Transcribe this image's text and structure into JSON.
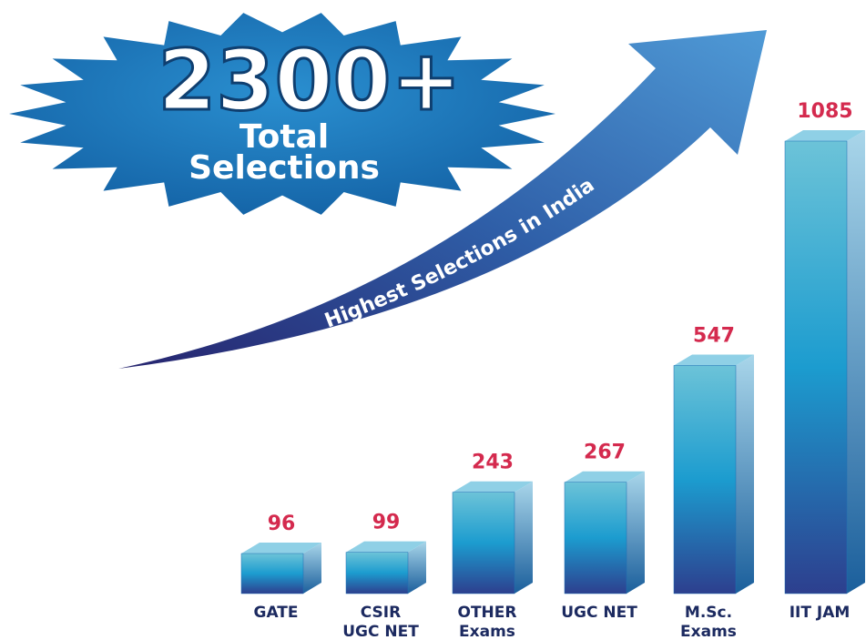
{
  "chart_data": {
    "type": "bar",
    "headline": "2300+",
    "caption": [
      "Total",
      "Selections"
    ],
    "arrow_text": "Highest Selections in India",
    "categories": [
      [
        "GATE"
      ],
      [
        "CSIR",
        "UGC NET"
      ],
      [
        "OTHER",
        "Exams"
      ],
      [
        "UGC NET"
      ],
      [
        "M.Sc.",
        "Exams"
      ],
      [
        "IIT JAM"
      ]
    ],
    "values": [
      96,
      99,
      243,
      267,
      547,
      1085
    ],
    "color": "#1e6fb3",
    "label_color": "#d42a4e"
  }
}
